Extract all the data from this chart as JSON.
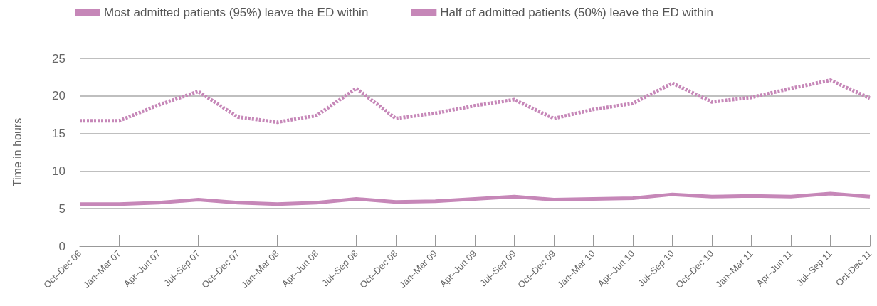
{
  "chart_data": {
    "type": "line",
    "ylabel": "Time in hours",
    "categories": [
      "Oct–Dec 06",
      "Jan–Mar 07",
      "Apr–Jun 07",
      "Jul–Sep 07",
      "Oct–Dec 07",
      "Jan–Mar 08",
      "Apr–Jun 08",
      "Jul–Sep 08",
      "Oct–Dec 08",
      "Jan–Mar 09",
      "Apr–Jun 09",
      "Jul–Sep 09",
      "Oct–Dec 09",
      "Jan–Mar 10",
      "Apr–Jun 10",
      "Jul–Sep 10",
      "Oct–Dec 10",
      "Jan–Mar 11",
      "Apr–Jun 11",
      "Jul–Sep 11",
      "Oct-Dec 11"
    ],
    "series": [
      {
        "name": "Most admitted patients (95%) leave the ED within",
        "color": "#c687b8",
        "line_style": "dashed",
        "values": [
          16.7,
          16.7,
          18.8,
          20.6,
          17.2,
          16.5,
          17.4,
          21.0,
          17.0,
          17.7,
          18.7,
          19.5,
          17.0,
          18.2,
          19.0,
          21.7,
          19.2,
          19.8,
          21.0,
          22.1,
          19.7
        ]
      },
      {
        "name": "Half of admitted patients (50%) leave the ED within",
        "color": "#c687b8",
        "line_style": "solid",
        "values": [
          5.6,
          5.6,
          5.8,
          6.2,
          5.8,
          5.6,
          5.8,
          6.3,
          5.9,
          6.0,
          6.3,
          6.6,
          6.2,
          6.3,
          6.4,
          6.9,
          6.6,
          6.7,
          6.6,
          7.0,
          6.6
        ]
      }
    ],
    "ylim": [
      0,
      25
    ],
    "yticks": [
      0,
      5,
      10,
      15,
      20,
      25
    ],
    "grid": "y",
    "legend": "top left",
    "marker": "none"
  }
}
